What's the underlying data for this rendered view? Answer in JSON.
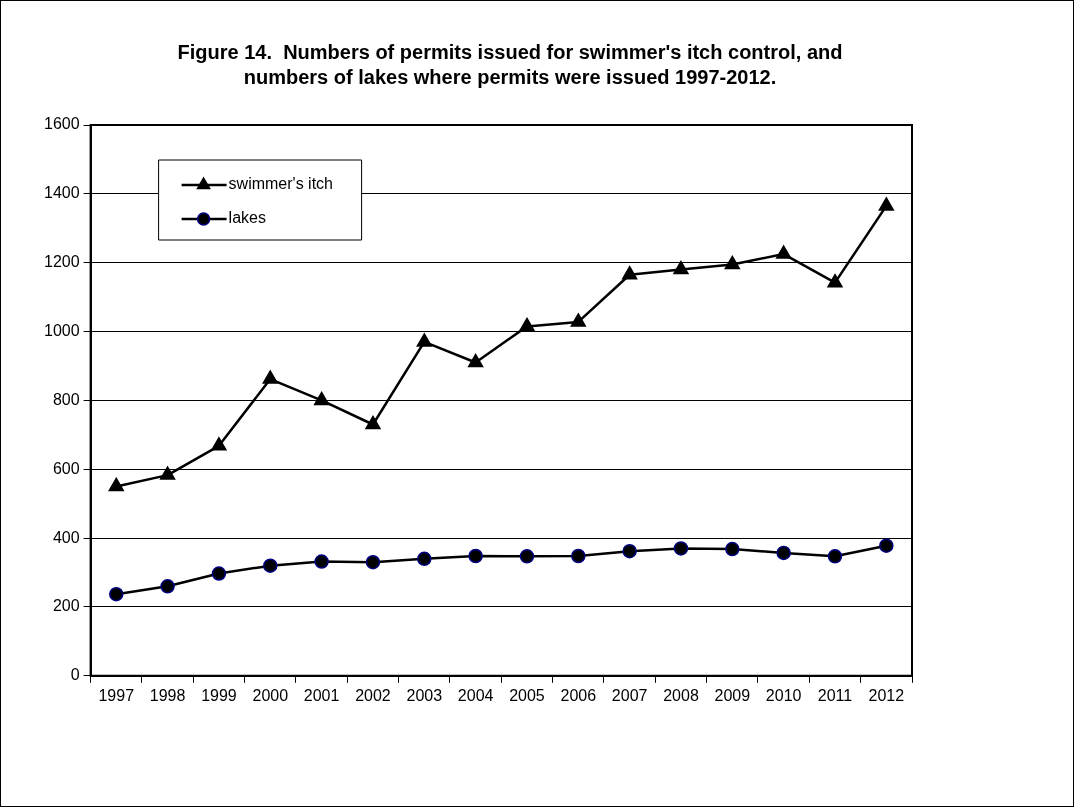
{
  "chart_data": {
    "type": "line",
    "title": "Figure 14.  Numbers of permits issued for swimmer's itch control, and numbers of lakes where permits were issued 1997-2012.",
    "categories": [
      "1997",
      "1998",
      "1999",
      "2000",
      "2001",
      "2002",
      "2003",
      "2004",
      "2005",
      "2006",
      "2007",
      "2008",
      "2009",
      "2010",
      "2011",
      "2012"
    ],
    "series": [
      {
        "name": "swimmer's itch",
        "color": "#000000",
        "marker": "triangle",
        "values": [
          550,
          583,
          668,
          862,
          800,
          730,
          970,
          910,
          1015,
          1028,
          1165,
          1180,
          1195,
          1225,
          1142,
          1365
        ]
      },
      {
        "name": "lakes",
        "color": "#000000",
        "marker": "circle",
        "values": [
          237,
          260,
          297,
          320,
          332,
          330,
          340,
          348,
          347,
          348,
          362,
          370,
          368,
          357,
          347,
          378
        ]
      }
    ],
    "ylim": [
      0,
      1600
    ],
    "yticks": [
      0,
      200,
      400,
      600,
      800,
      1000,
      1200,
      1400,
      1600
    ],
    "grid": "y",
    "legend": "top left",
    "line_style": "solid"
  }
}
